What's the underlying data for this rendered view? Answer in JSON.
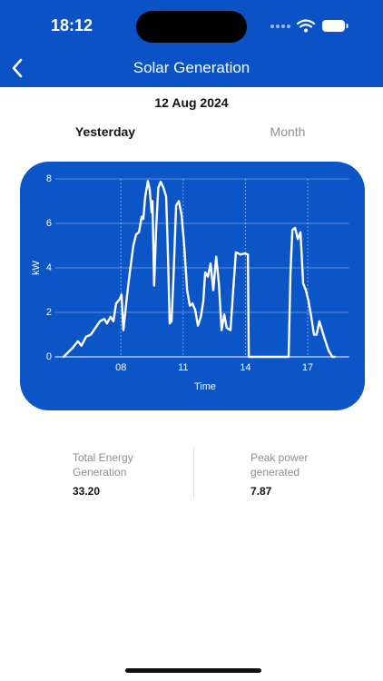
{
  "status_bar": {
    "time": "18:12"
  },
  "header": {
    "title": "Solar Generation"
  },
  "date": "12 Aug 2024",
  "tabs": [
    "Yesterday",
    "Month"
  ],
  "chart_data": {
    "type": "line",
    "xlabel": "Time",
    "ylabel": "kW",
    "color": "#ffffff",
    "grid": true,
    "xlim": [
      5,
      19
    ],
    "ylim": [
      0,
      8
    ],
    "xticks": [
      {
        "value": 8,
        "label": "08"
      },
      {
        "value": 11,
        "label": "11"
      },
      {
        "value": 14,
        "label": "14"
      },
      {
        "value": 17,
        "label": "17"
      }
    ],
    "yticks": [
      0,
      2,
      4,
      6,
      8
    ],
    "x": [
      5.24,
      5.67,
      5.93,
      6.1,
      6.32,
      6.55,
      6.77,
      6.99,
      7.2,
      7.33,
      7.5,
      7.64,
      7.77,
      7.95,
      8.03,
      8.12,
      8.3,
      8.43,
      8.6,
      8.73,
      8.87,
      9.0,
      9.08,
      9.17,
      9.3,
      9.39,
      9.48,
      9.52,
      9.6,
      9.7,
      9.8,
      9.92,
      10.05,
      10.18,
      10.27,
      10.35,
      10.44,
      10.53,
      10.66,
      10.79,
      10.92,
      11.05,
      11.19,
      11.32,
      11.45,
      11.58,
      11.71,
      11.85,
      11.97,
      12.06,
      12.19,
      12.32,
      12.45,
      12.59,
      12.72,
      12.85,
      12.98,
      13.1,
      13.28,
      13.41,
      13.54,
      13.76,
      13.98,
      14.12,
      14.16,
      16.08,
      16.17,
      16.26,
      16.39,
      16.52,
      16.65,
      16.78,
      16.91,
      17.04,
      17.17,
      17.3,
      17.43,
      17.56,
      17.69,
      17.82,
      18.0,
      18.18,
      18.3
    ],
    "values": [
      0,
      0.4,
      0.7,
      0.5,
      0.9,
      1.0,
      1.3,
      1.6,
      1.7,
      1.5,
      1.8,
      1.6,
      2.4,
      2.6,
      2.8,
      1.2,
      2.8,
      3.8,
      5.0,
      5.5,
      5.6,
      6.3,
      6.2,
      7.2,
      7.9,
      7.5,
      6.5,
      7.0,
      3.2,
      5.8,
      7.6,
      7.87,
      7.6,
      7.2,
      4.5,
      1.5,
      1.6,
      3.5,
      6.8,
      7.0,
      6.4,
      5.0,
      3.0,
      2.3,
      2.4,
      2.1,
      1.4,
      1.8,
      2.5,
      3.8,
      3.6,
      4.2,
      3.0,
      4.5,
      3.3,
      1.2,
      1.9,
      1.3,
      1.2,
      3.0,
      4.7,
      4.6,
      4.65,
      4.6,
      0,
      0,
      3.8,
      5.7,
      5.8,
      5.3,
      5.6,
      3.3,
      3.0,
      2.5,
      1.8,
      1.0,
      1.0,
      1.6,
      1.2,
      0.8,
      0.3,
      0,
      0
    ]
  },
  "stats": [
    {
      "label": "Total Energy Generation",
      "value": "33.20"
    },
    {
      "label": "Peak power generated",
      "value": "7.87"
    }
  ]
}
